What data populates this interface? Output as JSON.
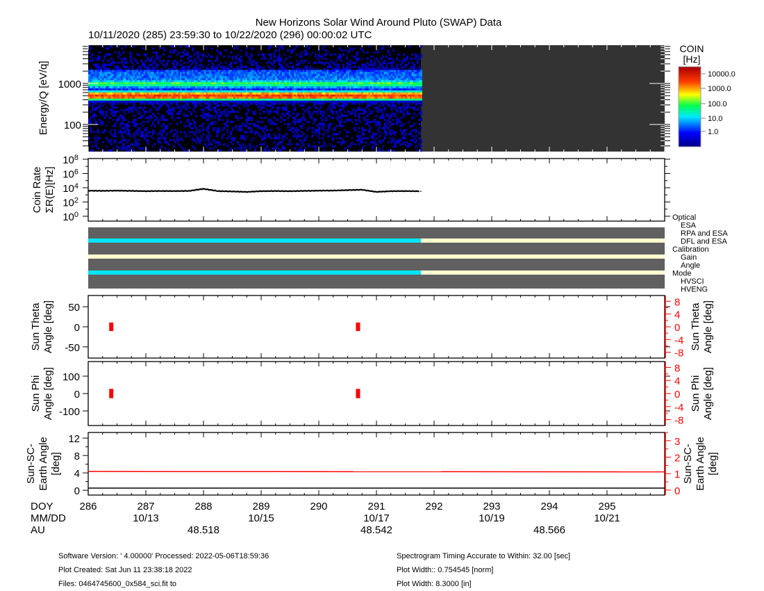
{
  "header": {
    "title": "New Horizons Solar Wind Around Pluto (SWAP) Data",
    "subtitle": "10/11/2020 (285) 23:59:30 to 10/22/2020 (296) 00:00:02 UTC"
  },
  "x_axis": {
    "row_labels": [
      "DOY",
      "MM/DD",
      "AU"
    ],
    "doy_range": [
      286,
      296
    ],
    "doy_ticks": [
      "286",
      "287",
      "288",
      "289",
      "290",
      "291",
      "292",
      "293",
      "294",
      "295"
    ],
    "mmdd": [
      {
        "doy": 287,
        "label": "10/13"
      },
      {
        "doy": 289,
        "label": "10/15"
      },
      {
        "doy": 291,
        "label": "10/17"
      },
      {
        "doy": 293,
        "label": "10/19"
      },
      {
        "doy": 295,
        "label": "10/21"
      }
    ],
    "au": [
      {
        "doy": 288,
        "label": "48.518"
      },
      {
        "doy": 291,
        "label": "48.542"
      },
      {
        "doy": 294,
        "label": "48.566"
      }
    ]
  },
  "chart_data": [
    {
      "type": "heatmap",
      "name": "spectrogram",
      "ylabel": "Energy/Q [eV/q]",
      "yscale": "log",
      "ylim": [
        22,
        8500
      ],
      "yticks": [
        "100",
        "1000"
      ],
      "data_end_doy": 291.77,
      "colorbar": {
        "title": "COIN",
        "units": "[Hz]",
        "ticks": [
          "10000.0",
          "1000.0",
          "100.0",
          "10.0",
          "1.0"
        ],
        "range": [
          1,
          30000
        ]
      },
      "profile_energy_rate": [
        [
          22,
          0.5
        ],
        [
          300,
          0.8
        ],
        [
          380,
          5
        ],
        [
          430,
          2000
        ],
        [
          500,
          6000
        ],
        [
          560,
          4000
        ],
        [
          620,
          200
        ],
        [
          700,
          8
        ],
        [
          800,
          20
        ],
        [
          950,
          200
        ],
        [
          1000,
          400
        ],
        [
          1050,
          150
        ],
        [
          1200,
          20
        ],
        [
          2000,
          15
        ],
        [
          2300,
          1
        ],
        [
          8500,
          0.3
        ]
      ]
    },
    {
      "type": "line",
      "name": "coin-rate",
      "ylabel": "Coin Rate",
      "ylabel2": "ΣR(E)[Hz]",
      "yscale": "log",
      "ylim": [
        1,
        100000000
      ],
      "yticks": [
        {
          "base": "10",
          "exp": "8"
        },
        {
          "base": "10",
          "exp": "6"
        },
        {
          "base": "10",
          "exp": "4"
        },
        {
          "base": "10",
          "exp": "2"
        },
        {
          "base": "10",
          "exp": "0"
        }
      ],
      "x": [
        286.0,
        286.25,
        286.5,
        286.75,
        287.0,
        287.25,
        287.5,
        287.75,
        288.0,
        288.25,
        288.5,
        288.75,
        289.0,
        289.25,
        289.5,
        289.75,
        290.0,
        290.25,
        290.5,
        290.75,
        291.0,
        291.25,
        291.5,
        291.77
      ],
      "values": [
        3800,
        3700,
        3900,
        3600,
        3300,
        3500,
        3400,
        3600,
        7000,
        3400,
        3000,
        2600,
        3300,
        3500,
        3300,
        3600,
        3900,
        4000,
        4600,
        5200,
        2600,
        3300,
        3400,
        3200
      ]
    },
    {
      "type": "table",
      "name": "status-flags",
      "legend": [
        {
          "label": "Optical",
          "color": "#000000",
          "header": true
        },
        {
          "label": "ESA",
          "color": "#00e5ff"
        },
        {
          "label": "RPA and ESA",
          "color": "#ff0000"
        },
        {
          "label": "DFL and ESA",
          "color": "#0000ff"
        },
        {
          "label": "Calibration",
          "color": "#000000",
          "header": true
        },
        {
          "label": "Gain",
          "color": "#ff0000"
        },
        {
          "label": "Angle",
          "color": "#00e5ff"
        },
        {
          "label": "Mode",
          "color": "#000000",
          "header": true
        },
        {
          "label": "HVSCI",
          "color": "#00e5ff"
        },
        {
          "label": "HVENG",
          "color": "#ff0000"
        }
      ],
      "rows": [
        {
          "name": "optical",
          "segments": [
            {
              "from": 286,
              "to": 291.77,
              "color": "#00e5ff"
            },
            {
              "from": 291.77,
              "to": 296,
              "color": "#fffbd0"
            }
          ]
        },
        {
          "name": "calibration",
          "segments": [
            {
              "from": 286,
              "to": 296,
              "color": "#fffbd0"
            }
          ]
        },
        {
          "name": "mode",
          "segments": [
            {
              "from": 286,
              "to": 291.77,
              "color": "#00e5ff"
            },
            {
              "from": 291.77,
              "to": 296,
              "color": "#fffbd0"
            }
          ]
        }
      ]
    },
    {
      "type": "scatter",
      "name": "sun-theta",
      "ylabel": [
        "Sun Theta",
        "Angle [deg]"
      ],
      "ylabel_right": [
        "Sun Theta",
        "Angle [deg]"
      ],
      "yticks_left": [
        "50",
        "0",
        "-50"
      ],
      "yticks_right": [
        "8",
        "4",
        "0",
        "-4",
        "-8"
      ],
      "ylim_right": [
        -9.8,
        9.8
      ],
      "points": [
        {
          "doy": 286.4,
          "min": -0.9,
          "max": 0.9
        },
        {
          "doy": 290.68,
          "min": -0.9,
          "max": 0.9
        }
      ]
    },
    {
      "type": "scatter",
      "name": "sun-phi",
      "ylabel": [
        "Sun Phi",
        "Angle [deg]"
      ],
      "ylabel_right": [
        "Sun Phi",
        "Angle [deg]"
      ],
      "yticks_left": [
        "100",
        "0",
        "-100"
      ],
      "yticks_right": [
        "8",
        "4",
        "0",
        "-4",
        "-8"
      ],
      "ylim_right": [
        -9.8,
        9.8
      ],
      "points": [
        {
          "doy": 286.4,
          "min": -1.0,
          "max": 1.0
        },
        {
          "doy": 290.68,
          "min": -1.0,
          "max": 1.0
        }
      ]
    },
    {
      "type": "line",
      "name": "sun-sc-earth-angle",
      "ylabel": [
        "Sun-SC-",
        "Earth Angle",
        "[deg]"
      ],
      "ylabel_right": [
        "Sun-SC-",
        "Earth Angle",
        "[deg]"
      ],
      "yticks_left": [
        "12",
        "8",
        "4",
        "0"
      ],
      "yticks_right": [
        "3",
        "2",
        "1",
        "0"
      ],
      "ylim_left": [
        -1.1,
        13.3
      ],
      "ylim_right": [
        -0.3,
        3.5
      ],
      "series": [
        {
          "name": "right-axis",
          "color": "#ff0000",
          "x": [
            286,
            296
          ],
          "values": [
            1.13,
            1.11
          ]
        },
        {
          "name": "left-axis",
          "color": "#000000",
          "x": [
            286,
            296
          ],
          "values": [
            0.5,
            0.5
          ]
        }
      ]
    }
  ],
  "footer": {
    "left": [
      "Software Version:  ' 4.00000'  Processed: 2022-05-06T18:59:36",
      "Plot Created: Sat Jun 11 23:38:18 2022",
      "Files: 0464745600_0x584_sci.fit to"
    ],
    "right": [
      "Spectrogram Timing Accurate to Within: 32.00 [sec]",
      "Plot Width:: 0.754545 [norm]",
      "Plot Width: 8.3000 [in]"
    ]
  }
}
